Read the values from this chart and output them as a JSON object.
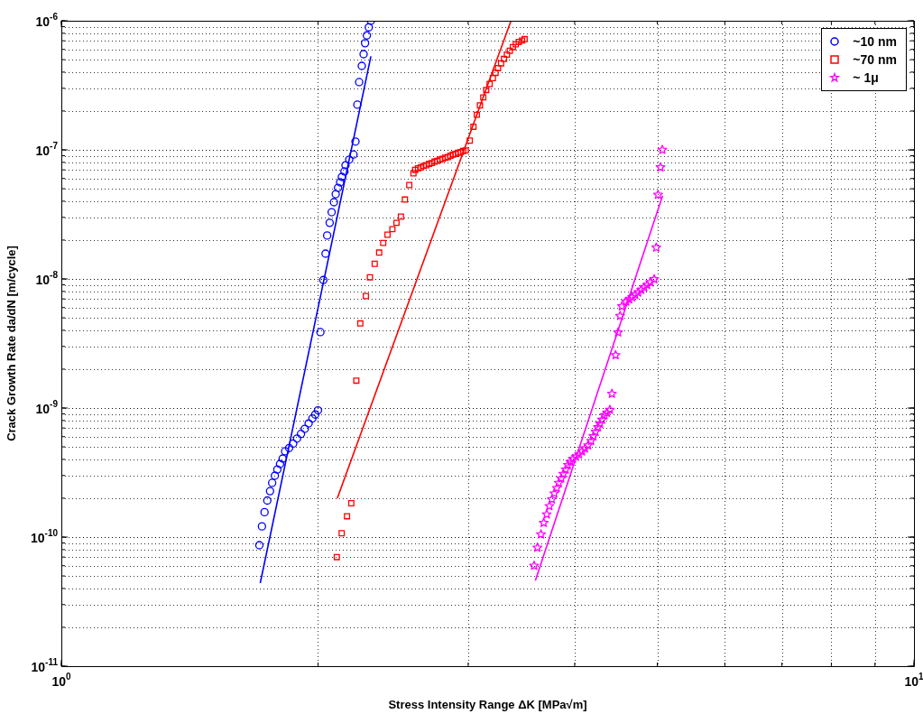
{
  "chart_data": {
    "type": "scatter",
    "xlabel": "Stress Intensity Range ΔK [MPa√m]",
    "ylabel": "Crack Growth Rate da/dN [m/cycle]",
    "log": "xy",
    "grid": true,
    "legend": "top right",
    "xlim": [
      1,
      10
    ],
    "xticks": [
      {
        "value": 1,
        "label": "10$^{0}$"
      },
      {
        "value": 10,
        "label": "10$^{1}$"
      }
    ],
    "ylim": [
      1e-11,
      1e-06
    ],
    "yticks": [
      {
        "value": 1e-11,
        "label": "10$^{-11}$"
      },
      {
        "value": 1e-10,
        "label": "10$^{-10}$"
      },
      {
        "value": 1e-09,
        "label": "10$^{-9}$"
      },
      {
        "value": 1e-08,
        "label": "10$^{-8}$"
      },
      {
        "value": 1e-07,
        "label": "10$^{-7}$"
      },
      {
        "value": 1e-06,
        "label": "10$^{-6}$"
      }
    ],
    "series": [
      {
        "name": "~10 nm",
        "marker": "circle",
        "color": "#0000ff",
        "x": [
          1.707,
          1.719,
          1.731,
          1.744,
          1.757,
          1.767,
          1.78,
          1.792,
          1.805,
          1.818,
          1.83,
          1.85,
          1.87,
          1.89,
          1.91,
          1.93,
          1.95,
          1.97,
          1.985,
          2.0,
          2.013,
          2.029,
          2.041,
          2.05,
          2.064,
          2.075,
          2.088,
          2.098,
          2.111,
          2.123,
          2.133,
          2.148,
          2.154,
          2.176,
          2.201,
          2.213,
          2.224,
          2.235,
          2.251,
          2.262,
          2.271,
          2.282,
          2.294,
          2.307
        ],
        "values": [
          8.65e-11,
          1.21e-10,
          1.56e-10,
          1.92e-10,
          2.27e-10,
          2.63e-10,
          2.99e-10,
          3.34e-10,
          3.68e-10,
          4.06e-10,
          4.62e-10,
          4.9e-10,
          5.3e-10,
          5.8e-10,
          6.3e-10,
          6.9e-10,
          7.6e-10,
          8.3e-10,
          8.9e-10,
          9.6e-10,
          3.87e-09,
          9.8e-09,
          1.57e-08,
          2.17e-08,
          2.72e-08,
          3.29e-08,
          3.93e-08,
          4.54e-08,
          5.08e-08,
          5.6e-08,
          6.17e-08,
          6.8e-08,
          7.6e-08,
          8.4e-08,
          9.2e-08,
          1.16e-07,
          2.24e-07,
          3.35e-07,
          4.47e-07,
          5.51e-07,
          6.7e-07,
          7.7e-07,
          8.9e-07,
          1e-06
        ]
      },
      {
        "name": "~70 nm",
        "marker": "square",
        "color": "#ff0000",
        "x": [
          2.104,
          2.132,
          2.163,
          2.188,
          2.218,
          2.242,
          2.276,
          2.301,
          2.331,
          2.359,
          2.385,
          2.413,
          2.445,
          2.472,
          2.502,
          2.529,
          2.559,
          2.588,
          2.6,
          2.62,
          2.64,
          2.66,
          2.68,
          2.7,
          2.72,
          2.74,
          2.76,
          2.78,
          2.8,
          2.82,
          2.84,
          2.86,
          2.88,
          2.9,
          2.92,
          2.94,
          2.96,
          2.98,
          3.013,
          3.043,
          3.071,
          3.097,
          3.125,
          3.15,
          3.179,
          3.207,
          3.23,
          3.252,
          3.279,
          3.305,
          3.331,
          3.357,
          3.385,
          3.412,
          3.439,
          3.47,
          3.494
        ],
        "values": [
          7e-11,
          1.07e-10,
          1.45e-10,
          1.83e-10,
          1.63e-09,
          4.52e-09,
          7.36e-09,
          1.03e-08,
          1.31e-08,
          1.6e-08,
          1.9e-08,
          2.2e-08,
          2.43e-08,
          2.72e-08,
          3.04e-08,
          4.12e-08,
          5.34e-08,
          6.58e-08,
          7e-08,
          7.2e-08,
          7.3e-08,
          7.5e-08,
          7.6e-08,
          7.8e-08,
          7.9e-08,
          8.1e-08,
          8.2e-08,
          8.4e-08,
          8.5e-08,
          8.7e-08,
          8.8e-08,
          9e-08,
          9.2e-08,
          9.3e-08,
          9.5e-08,
          9.6e-08,
          9.8e-08,
          9.9e-08,
          1.18e-07,
          1.51e-07,
          1.87e-07,
          2.21e-07,
          2.55e-07,
          2.91e-07,
          3.24e-07,
          3.6e-07,
          3.95e-07,
          4.3e-07,
          4.68e-07,
          5.06e-07,
          5.47e-07,
          5.85e-07,
          6.25e-07,
          6.58e-07,
          6.86e-07,
          7.03e-07,
          7.21e-07
        ]
      },
      {
        "name": "~ 1μ",
        "marker": "star",
        "color": "#ff00ff",
        "x": [
          3.585,
          3.617,
          3.652,
          3.679,
          3.709,
          3.736,
          3.761,
          3.785,
          3.811,
          3.832,
          3.857,
          3.879,
          3.904,
          3.927,
          3.953,
          3.981,
          4.014,
          4.047,
          4.08,
          4.113,
          4.147,
          4.181,
          4.207,
          4.232,
          4.259,
          4.282,
          4.307,
          4.335,
          4.364,
          4.399,
          4.423,
          4.467,
          4.497,
          4.522,
          4.544,
          4.596,
          4.634,
          4.672,
          4.71,
          4.748,
          4.787,
          4.826,
          4.865,
          4.905,
          4.958,
          4.986,
          5.01,
          5.043,
          5.068
        ],
        "values": [
          6e-11,
          8.28e-11,
          1.05e-10,
          1.29e-10,
          1.5e-10,
          1.74e-10,
          1.96e-10,
          2.18e-10,
          2.4e-10,
          2.63e-10,
          2.85e-10,
          3.09e-10,
          3.34e-10,
          3.62e-10,
          3.83e-10,
          4.04e-10,
          4.19e-10,
          4.37e-10,
          4.61e-10,
          4.86e-10,
          5.14e-10,
          5.57e-10,
          6.04e-10,
          6.55e-10,
          7.1e-10,
          7.57e-10,
          8.11e-10,
          8.79e-10,
          9.18e-10,
          9.68e-10,
          1.29e-09,
          2.57e-09,
          3.85e-09,
          5.17e-09,
          6.14e-09,
          6.68e-09,
          6.94e-09,
          7.21e-09,
          7.52e-09,
          7.85e-09,
          8.24e-09,
          8.61e-09,
          8.98e-09,
          9.42e-09,
          9.95e-09,
          1.75e-08,
          4.49e-08,
          7.33e-08,
          1e-07
        ]
      },
      {
        "type": "line",
        "marker": "none",
        "color": "#0000ff",
        "x": [
          1.711,
          2.307
        ],
        "values": [
          4.4e-11,
          5.3e-07
        ]
      },
      {
        "type": "line",
        "marker": "none",
        "color": "#ff0000",
        "x": [
          2.107,
          3.368
        ],
        "values": [
          2e-10,
          1e-06
        ]
      },
      {
        "type": "line",
        "marker": "none",
        "color": "#ff00ff",
        "x": [
          3.597,
          5.072
        ],
        "values": [
          4.6e-11,
          4.42e-08
        ]
      }
    ]
  }
}
